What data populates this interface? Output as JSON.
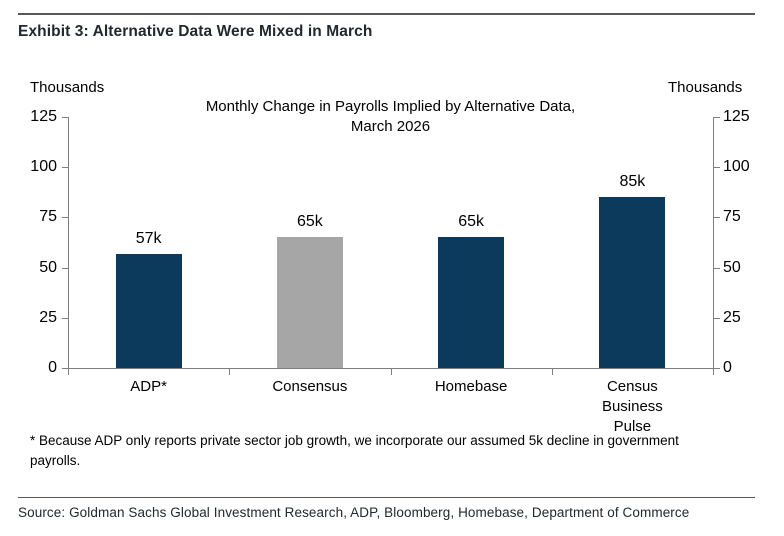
{
  "page": {
    "exhibit_title": "Exhibit 3: Alternative Data Were Mixed in March",
    "footnote_lines": [
      "* Because ADP only reports private sector job growth, we incorporate our assumed 5k decline in government",
      "payrolls."
    ],
    "source_line": "Source: Goldman Sachs Global Investment Research, ADP, Bloomberg, Homebase, Department of Commerce"
  },
  "chart_data": {
    "type": "bar",
    "title_lines": [
      "Monthly Change in Payrolls Implied by Alternative Data,",
      "March 2026"
    ],
    "axis_label_left": "Thousands",
    "axis_label_right": "Thousands",
    "categories": [
      "ADP*",
      "Consensus",
      "Homebase",
      "Census Business Pulse"
    ],
    "category_lines": [
      [
        "ADP*"
      ],
      [
        "Consensus"
      ],
      [
        "Homebase"
      ],
      [
        "Census",
        "Business",
        "Pulse"
      ]
    ],
    "values": [
      57,
      65,
      65,
      85
    ],
    "value_labels": [
      "57k",
      "65k",
      "65k",
      "85k"
    ],
    "bar_colors": [
      "#0b3a5d",
      "#a6a6a6",
      "#0b3a5d",
      "#0b3a5d"
    ],
    "yticks": [
      0,
      25,
      50,
      75,
      100,
      125
    ],
    "ylim": [
      0,
      125
    ],
    "grid": false,
    "legend": null,
    "colors": {
      "navy": "#0b3a5d",
      "gray": "#a6a6a6",
      "axis": "#7f7f7f"
    }
  }
}
